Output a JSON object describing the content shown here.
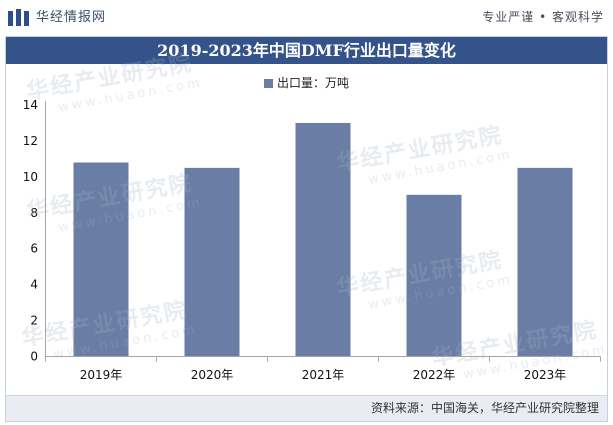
{
  "header": {
    "logo_icon": "book-bars-icon",
    "brand": "华经情报网",
    "slogan": "专业严谨 • 客观科学"
  },
  "colors": {
    "title_bar": "#34538a",
    "footer_band": "#e9edf3",
    "logo": "#2d4e8a"
  },
  "chart_data": {
    "type": "bar",
    "title": "2019-2023年中国DMF行业出口量变化",
    "categories": [
      "2019年",
      "2020年",
      "2021年",
      "2022年",
      "2023年"
    ],
    "series": [
      {
        "name": "出口量：万吨",
        "values": [
          10.8,
          10.5,
          13.0,
          9.0,
          10.5
        ],
        "color": "#6a7ea5"
      }
    ],
    "xlabel": "",
    "ylabel": "",
    "ylim": [
      0,
      14
    ],
    "yticks": [
      0,
      2,
      4,
      6,
      8,
      10,
      12,
      14
    ],
    "grid": false,
    "legend": "top-center"
  },
  "footer": {
    "source": "资料来源：中国海关，华经产业研究院整理"
  },
  "watermark": {
    "name": "华经产业研究院",
    "url": "www.huaon.com"
  }
}
